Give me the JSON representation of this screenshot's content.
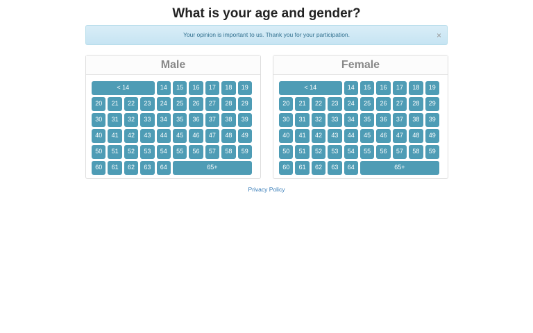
{
  "header": {
    "title": "What is your age and gender?"
  },
  "alert": {
    "text": "Your opinion is important to us. Thank you for your participation.",
    "close": "×"
  },
  "panels": [
    {
      "heading": "Male",
      "buttons": [
        "< 14",
        "14",
        "15",
        "16",
        "17",
        "18",
        "19",
        "20",
        "21",
        "22",
        "23",
        "24",
        "25",
        "26",
        "27",
        "28",
        "29",
        "30",
        "31",
        "32",
        "33",
        "34",
        "35",
        "36",
        "37",
        "38",
        "39",
        "40",
        "41",
        "42",
        "43",
        "44",
        "45",
        "46",
        "47",
        "48",
        "49",
        "50",
        "51",
        "52",
        "53",
        "54",
        "55",
        "56",
        "57",
        "58",
        "59",
        "60",
        "61",
        "62",
        "63",
        "64",
        "65+"
      ]
    },
    {
      "heading": "Female",
      "buttons": [
        "< 14",
        "14",
        "15",
        "16",
        "17",
        "18",
        "19",
        "20",
        "21",
        "22",
        "23",
        "24",
        "25",
        "26",
        "27",
        "28",
        "29",
        "30",
        "31",
        "32",
        "33",
        "34",
        "35",
        "36",
        "37",
        "38",
        "39",
        "40",
        "41",
        "42",
        "43",
        "44",
        "45",
        "46",
        "47",
        "48",
        "49",
        "50",
        "51",
        "52",
        "53",
        "54",
        "55",
        "56",
        "57",
        "58",
        "59",
        "60",
        "61",
        "62",
        "63",
        "64",
        "65+"
      ]
    }
  ],
  "footer": {
    "link": "Privacy Policy"
  }
}
